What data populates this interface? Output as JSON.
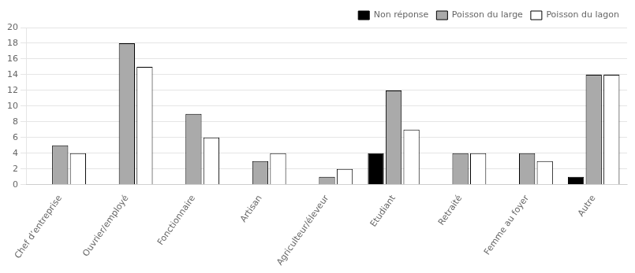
{
  "chart_data": {
    "type": "bar",
    "categories": [
      "Chef d’entreprise",
      "Ouvrier/employé",
      "Fonctionnaire",
      "Artisan",
      "Agriculteur/éleveur",
      "Etudiant",
      "Retraité",
      "Femme au foyer",
      "Autre"
    ],
    "series": [
      {
        "name": "Non réponse",
        "color": "#000000",
        "values": [
          0,
          0,
          0,
          0,
          0,
          4,
          0,
          0,
          1
        ]
      },
      {
        "name": "Poisson du large",
        "color": "#aaaaaa",
        "values": [
          5,
          18,
          9,
          3,
          1,
          12,
          4,
          4,
          14
        ]
      },
      {
        "name": "Poisson du lagon",
        "color": "#ffffff",
        "values": [
          4,
          15,
          6,
          4,
          2,
          7,
          4,
          3,
          14
        ]
      }
    ],
    "ylim": [
      0,
      20
    ],
    "yticks": [
      0,
      2,
      4,
      6,
      8,
      10,
      12,
      14,
      16,
      18,
      20
    ],
    "grid": true,
    "legend": "upper right"
  }
}
